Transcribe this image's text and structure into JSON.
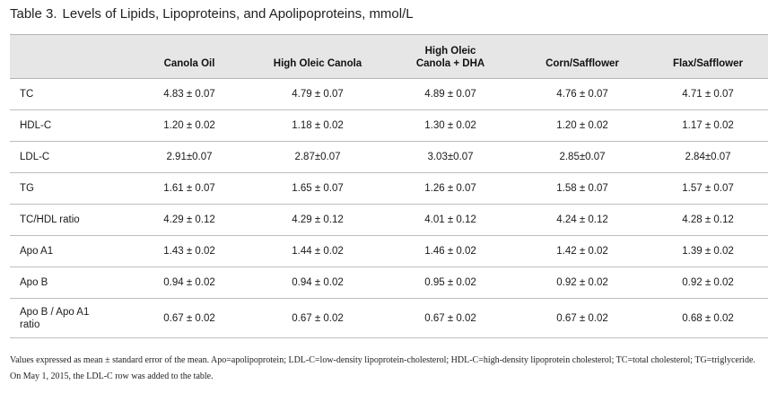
{
  "title": {
    "label": "Table 3.",
    "text": "Levels of Lipids, Lipoproteins, and Apolipoproteins, mmol/L"
  },
  "columns": [
    "",
    "Canola Oil",
    "High Oleic Canola",
    "High Oleic\nCanola + DHA",
    "Corn/Safflower",
    "Flax/Safflower"
  ],
  "rows": [
    {
      "label": "TC",
      "values": [
        "4.83 ± 0.07",
        "4.79 ± 0.07",
        "4.89 ± 0.07",
        "4.76 ± 0.07",
        "4.71 ± 0.07"
      ]
    },
    {
      "label": "HDL-C",
      "values": [
        "1.20 ± 0.02",
        "1.18 ± 0.02",
        "1.30 ± 0.02",
        "1.20 ± 0.02",
        "1.17 ± 0.02"
      ]
    },
    {
      "label": "LDL-C",
      "values": [
        "2.91±0.07",
        "2.87±0.07",
        "3.03±0.07",
        "2.85±0.07",
        "2.84±0.07"
      ]
    },
    {
      "label": "TG",
      "values": [
        "1.61 ± 0.07",
        "1.65 ± 0.07",
        "1.26 ± 0.07",
        "1.58 ± 0.07",
        "1.57 ± 0.07"
      ]
    },
    {
      "label": "TC/HDL ratio",
      "values": [
        "4.29 ± 0.12",
        "4.29 ± 0.12",
        "4.01 ± 0.12",
        "4.24 ± 0.12",
        "4.28 ± 0.12"
      ]
    },
    {
      "label": "Apo A1",
      "values": [
        "1.43 ± 0.02",
        "1.44 ± 0.02",
        "1.46 ± 0.02",
        "1.42 ± 0.02",
        "1.39 ± 0.02"
      ]
    },
    {
      "label": "Apo B",
      "values": [
        "0.94 ± 0.02",
        "0.94 ± 0.02",
        "0.95 ± 0.02",
        "0.92 ± 0.02",
        "0.92 ± 0.02"
      ]
    },
    {
      "label": "Apo B / Apo A1\nratio",
      "values": [
        "0.67 ± 0.02",
        "0.67 ± 0.02",
        "0.67 ± 0.02",
        "0.67 ± 0.02",
        "0.68 ± 0.02"
      ]
    }
  ],
  "notes": {
    "footnote": "Values expressed as mean ± standard error of the mean. Apo=apolipoprotein; LDL-C=low-density lipoprotein-cholesterol; HDL-C=high-density lipoprotein cholesterol; TC=total cholesterol; TG=triglyceride.",
    "correction": "On May 1, 2015, the LDL-C row was added to the table."
  }
}
